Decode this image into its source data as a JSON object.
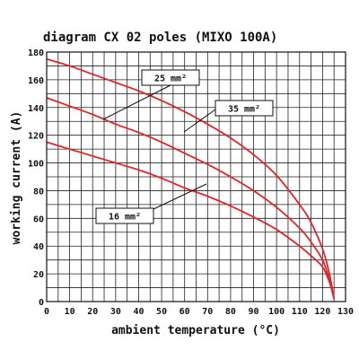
{
  "chart_data": {
    "type": "line",
    "title": "diagram CX 02 poles (MIXO 100A)",
    "xlabel": "ambient temperature (°C)",
    "ylabel": "working current (A)",
    "xlim": [
      0,
      130
    ],
    "ylim": [
      0,
      180
    ],
    "x_ticks": [
      0,
      10,
      20,
      30,
      40,
      50,
      60,
      70,
      80,
      90,
      100,
      110,
      120,
      130
    ],
    "y_ticks": [
      0,
      20,
      40,
      60,
      80,
      100,
      120,
      140,
      160,
      180
    ],
    "grid": true,
    "series": [
      {
        "name": "25 mm²",
        "x": [
          0,
          10,
          20,
          30,
          40,
          50,
          60,
          70,
          80,
          90,
          100,
          110,
          115,
          120,
          123,
          125
        ],
        "y": [
          175,
          170,
          164,
          158,
          152,
          145,
          137,
          128,
          118,
          106,
          91,
          70,
          57,
          38,
          20,
          2
        ]
      },
      {
        "name": "35 mm²",
        "x": [
          0,
          10,
          20,
          30,
          40,
          50,
          60,
          70,
          80,
          90,
          100,
          110,
          115,
          120,
          123,
          125
        ],
        "y": [
          147,
          141,
          135,
          128,
          122,
          115,
          107,
          99,
          90,
          80,
          68,
          53,
          43,
          30,
          16,
          2
        ]
      },
      {
        "name": "16 mm²",
        "x": [
          0,
          10,
          20,
          30,
          40,
          50,
          60,
          70,
          80,
          90,
          100,
          110,
          115,
          120,
          123,
          125
        ],
        "y": [
          115,
          110,
          105,
          100,
          95,
          89,
          82,
          76,
          69,
          61,
          52,
          40,
          33,
          25,
          14,
          2
        ]
      }
    ],
    "annotations": [
      {
        "series": "25 mm²",
        "text": "25 mm²"
      },
      {
        "series": "35 mm²",
        "text": "35 mm²"
      },
      {
        "series": "16 mm²",
        "text": "16 mm²"
      }
    ]
  }
}
